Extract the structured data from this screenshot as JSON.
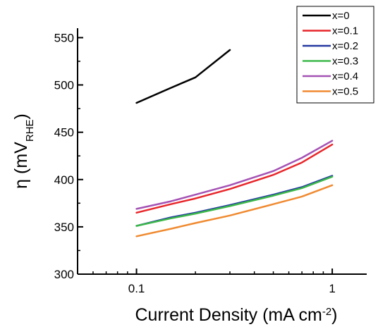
{
  "chart_data": {
    "type": "line",
    "xscale": "log",
    "xlim": [
      0.05,
      1.5
    ],
    "ylim": [
      300,
      560
    ],
    "grid": false,
    "legend_position": "top-right",
    "x_ticks": [
      {
        "value": 0.1,
        "label": "0.1"
      },
      {
        "value": 1,
        "label": "1"
      }
    ],
    "y_ticks": [
      {
        "value": 300,
        "label": "300"
      },
      {
        "value": 350,
        "label": "350"
      },
      {
        "value": 400,
        "label": "400"
      },
      {
        "value": 450,
        "label": "450"
      },
      {
        "value": 500,
        "label": "500"
      },
      {
        "value": 550,
        "label": "550"
      }
    ],
    "xlabel": {
      "main": "Current Density (mA cm",
      "sup": "-2",
      "close": ")"
    },
    "ylabel": {
      "main": "η (mV",
      "sub": "RHE",
      "close": ")"
    },
    "series": [
      {
        "name": "x=0",
        "color": "#000000",
        "x": [
          0.1,
          0.15,
          0.2,
          0.3
        ],
        "y": [
          481,
          497,
          508,
          537
        ]
      },
      {
        "name": "x=0.1",
        "color": "#e8262a",
        "x": [
          0.1,
          0.15,
          0.2,
          0.3,
          0.5,
          0.7,
          1.0
        ],
        "y": [
          365,
          374,
          380,
          390,
          405,
          418,
          437
        ]
      },
      {
        "name": "x=0.2",
        "color": "#2438a0",
        "x": [
          0.1,
          0.15,
          0.2,
          0.3,
          0.5,
          0.7,
          1.0
        ],
        "y": [
          351,
          360,
          365,
          373,
          384,
          392,
          404
        ]
      },
      {
        "name": "x=0.3",
        "color": "#3cb84a",
        "x": [
          0.1,
          0.15,
          0.2,
          0.3,
          0.5,
          0.7,
          1.0
        ],
        "y": [
          351,
          359,
          364,
          372,
          383,
          391,
          403
        ]
      },
      {
        "name": "x=0.4",
        "color": "#a452b4",
        "x": [
          0.1,
          0.15,
          0.2,
          0.3,
          0.5,
          0.7,
          1.0
        ],
        "y": [
          369,
          377,
          384,
          394,
          409,
          423,
          441
        ]
      },
      {
        "name": "x=0.5",
        "color": "#f08a30",
        "x": [
          0.1,
          0.15,
          0.2,
          0.3,
          0.5,
          0.7,
          1.0
        ],
        "y": [
          340,
          348,
          354,
          362,
          374,
          382,
          394
        ]
      }
    ]
  }
}
